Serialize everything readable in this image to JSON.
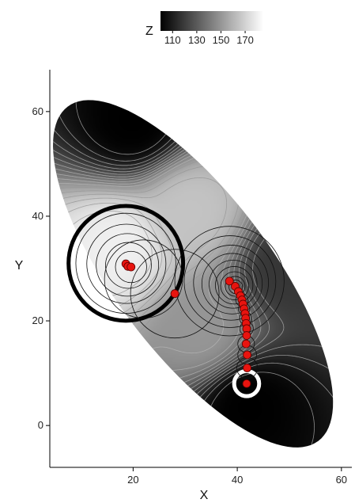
{
  "chart_data": {
    "type": "contour-heatmap",
    "xlabel": "X",
    "ylabel": "Y",
    "xlim": [
      4,
      62
    ],
    "ylim": [
      -8,
      68
    ],
    "x_ticks": [
      20,
      40,
      60
    ],
    "y_ticks": [
      0,
      20,
      40,
      60
    ],
    "grid": false,
    "legend": {
      "title": "Z",
      "placement": "top-center",
      "type": "colorbar",
      "range": [
        100,
        185
      ],
      "ticks": [
        110,
        130,
        150,
        170
      ],
      "colors": [
        "#000000",
        "#ffffff"
      ]
    },
    "domain_ellipse": {
      "center": [
        31.5,
        29
      ],
      "semi_axes": [
        15,
        40
      ],
      "rotation_deg": 37
    },
    "surface_extrema": [
      {
        "kind": "max",
        "x": 17,
        "y": 34,
        "z": 180
      },
      {
        "kind": "max",
        "x": 31,
        "y": 41,
        "z": 165
      },
      {
        "kind": "max",
        "x": 33,
        "y": 18,
        "z": 150
      },
      {
        "kind": "min",
        "x": 20,
        "y": 58,
        "z": 100
      },
      {
        "kind": "min",
        "x": 42,
        "y": 4,
        "z": 100
      },
      {
        "kind": "min",
        "x": 50,
        "y": 30,
        "z": 118
      }
    ],
    "points": [
      {
        "x": 18.6,
        "y": 30.9
      },
      {
        "x": 19.0,
        "y": 30.4
      },
      {
        "x": 19.6,
        "y": 30.3
      },
      {
        "x": 28.0,
        "y": 25.2
      },
      {
        "x": 38.5,
        "y": 27.6
      },
      {
        "x": 39.6,
        "y": 26.6
      },
      {
        "x": 40.2,
        "y": 25.6
      },
      {
        "x": 40.6,
        "y": 24.8
      },
      {
        "x": 40.9,
        "y": 24.0
      },
      {
        "x": 41.1,
        "y": 23.2
      },
      {
        "x": 41.3,
        "y": 22.3
      },
      {
        "x": 41.5,
        "y": 21.4
      },
      {
        "x": 41.6,
        "y": 20.5
      },
      {
        "x": 41.7,
        "y": 19.5
      },
      {
        "x": 41.8,
        "y": 18.5
      },
      {
        "x": 41.8,
        "y": 17.2
      },
      {
        "x": 41.7,
        "y": 15.6
      },
      {
        "x": 41.9,
        "y": 13.5
      },
      {
        "x": 41.9,
        "y": 11.0
      },
      {
        "x": 41.8,
        "y": 8.0
      }
    ],
    "circles": [
      {
        "x": 18.6,
        "y": 31.0,
        "r": 11.0,
        "style": "bold-black"
      },
      {
        "x": 41.8,
        "y": 8.0,
        "r": 2.4,
        "style": "bold-white"
      },
      {
        "x": 18.6,
        "y": 31.0,
        "r": 9.6,
        "style": "thin"
      },
      {
        "x": 18.7,
        "y": 30.9,
        "r": 7.6,
        "style": "thin"
      },
      {
        "x": 18.9,
        "y": 30.7,
        "r": 6.0,
        "style": "thin"
      },
      {
        "x": 19.1,
        "y": 30.6,
        "r": 4.4,
        "style": "thin"
      },
      {
        "x": 19.6,
        "y": 30.3,
        "r": 3.0,
        "style": "thin"
      },
      {
        "x": 22.0,
        "y": 28.0,
        "r": 7.5,
        "style": "thin"
      },
      {
        "x": 28.0,
        "y": 25.2,
        "r": 8.5,
        "style": "thin"
      },
      {
        "x": 38.5,
        "y": 27.6,
        "r": 10.5,
        "style": "thin"
      },
      {
        "x": 38.6,
        "y": 27.5,
        "r": 8.8,
        "style": "thin"
      },
      {
        "x": 38.8,
        "y": 27.3,
        "r": 7.2,
        "style": "thin"
      },
      {
        "x": 39.0,
        "y": 27.1,
        "r": 5.8,
        "style": "thin"
      },
      {
        "x": 39.2,
        "y": 27.0,
        "r": 4.6,
        "style": "thin"
      },
      {
        "x": 39.4,
        "y": 26.8,
        "r": 3.6,
        "style": "thin"
      },
      {
        "x": 39.5,
        "y": 26.7,
        "r": 2.7,
        "style": "thin"
      },
      {
        "x": 39.6,
        "y": 26.6,
        "r": 1.9,
        "style": "thin"
      },
      {
        "x": 39.7,
        "y": 26.5,
        "r": 1.3,
        "style": "thin"
      },
      {
        "x": 40.9,
        "y": 24.0,
        "r": 1.2,
        "style": "thin"
      },
      {
        "x": 41.3,
        "y": 22.3,
        "r": 1.1,
        "style": "thin"
      },
      {
        "x": 41.6,
        "y": 20.5,
        "r": 1.2,
        "style": "thin"
      },
      {
        "x": 41.8,
        "y": 18.5,
        "r": 1.3,
        "style": "thin"
      },
      {
        "x": 41.7,
        "y": 15.6,
        "r": 1.6,
        "style": "thin"
      },
      {
        "x": 41.9,
        "y": 13.5,
        "r": 1.8,
        "style": "thin"
      },
      {
        "x": 41.9,
        "y": 11.0,
        "r": 2.0,
        "style": "thin"
      }
    ],
    "point_color": "#e8140f",
    "point_stroke": "#5a0000"
  }
}
